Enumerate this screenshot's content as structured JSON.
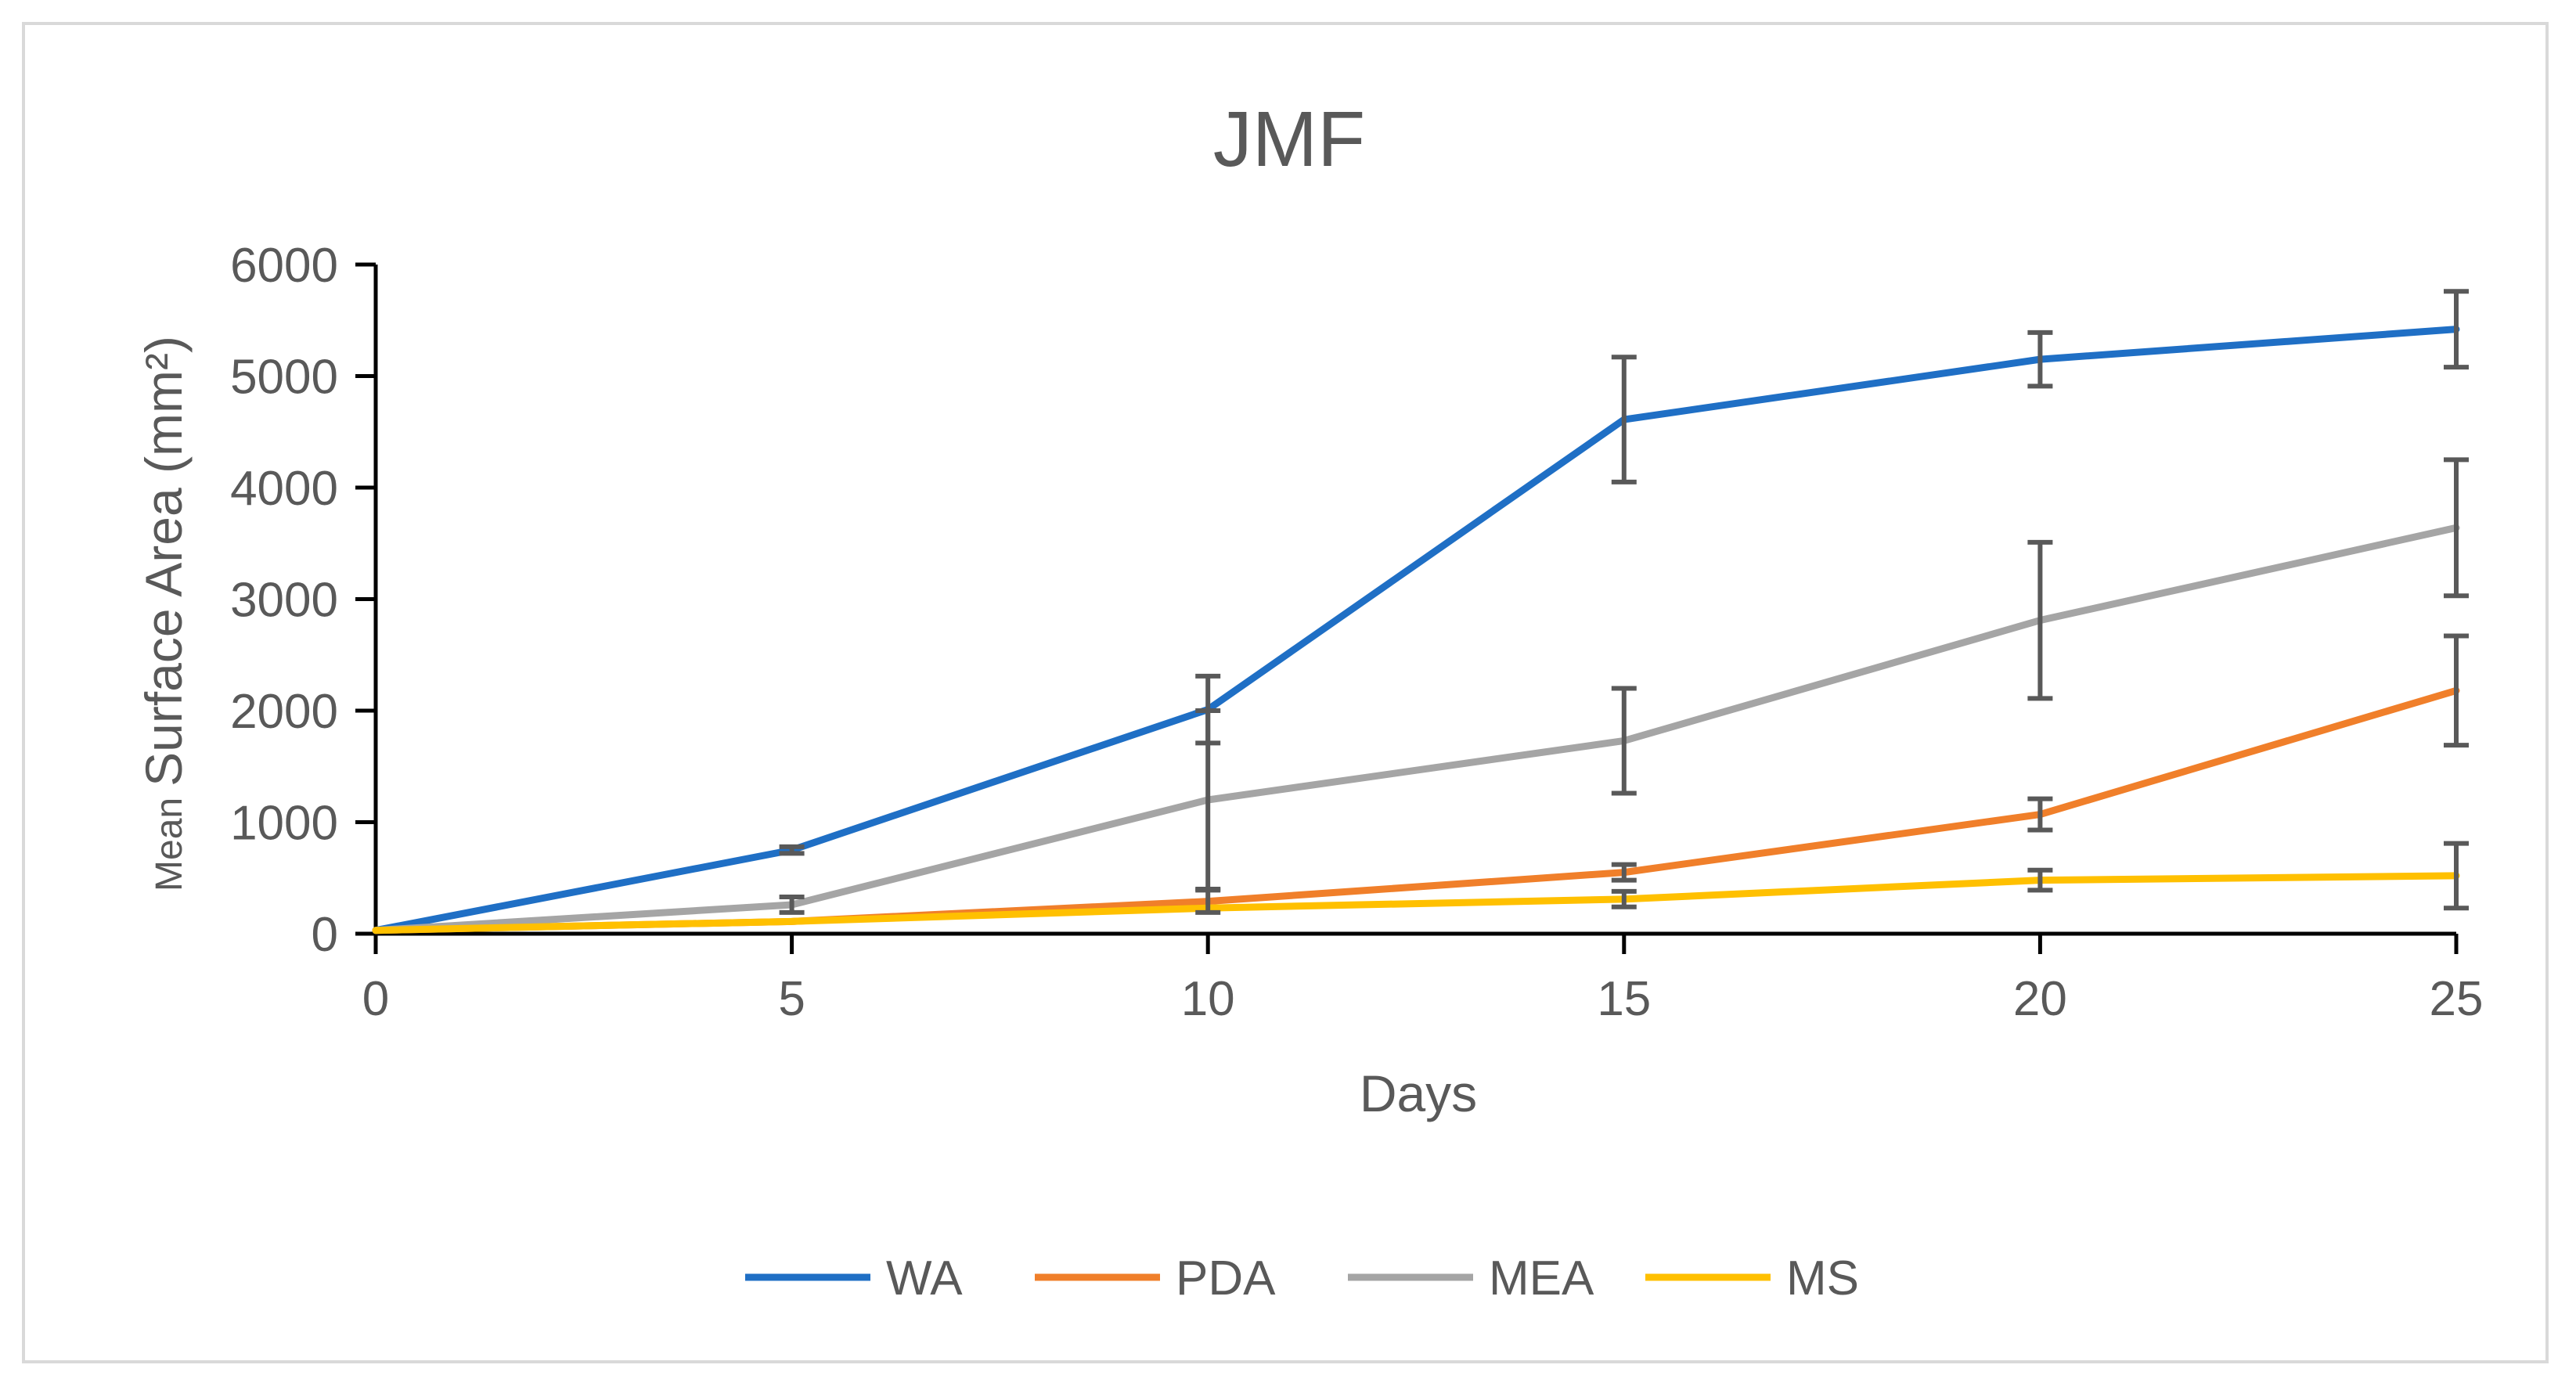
{
  "chart_data": {
    "type": "line",
    "title": "JMF",
    "xlabel": "Days",
    "ylabel_small": "Mean",
    "ylabel_large": "Surface Area (mm²)",
    "x": [
      0,
      5,
      10,
      15,
      20,
      25
    ],
    "xlim": [
      0,
      25
    ],
    "ylim": [
      0,
      6000
    ],
    "xticks": [
      0,
      5,
      10,
      15,
      20,
      25
    ],
    "yticks": [
      0,
      1000,
      2000,
      3000,
      4000,
      5000,
      6000
    ],
    "grid": false,
    "legend_position": "bottom",
    "series": [
      {
        "name": "WA",
        "color": "#1f6fc5",
        "values": [
          30,
          750,
          2010,
          4610,
          5150,
          5420
        ],
        "error": [
          0,
          30,
          300,
          560,
          240,
          340
        ]
      },
      {
        "name": "PDA",
        "color": "#f07f2a",
        "values": [
          30,
          110,
          290,
          550,
          1070,
          2180
        ],
        "error": [
          0,
          0,
          100,
          70,
          140,
          490
        ]
      },
      {
        "name": "MEA",
        "color": "#a5a5a5",
        "values": [
          30,
          260,
          1200,
          1730,
          2810,
          3640
        ],
        "error": [
          0,
          70,
          800,
          470,
          700,
          610
        ]
      },
      {
        "name": "MS",
        "color": "#ffc000",
        "values": [
          30,
          110,
          230,
          310,
          480,
          520
        ],
        "error": [
          0,
          0,
          0,
          70,
          90,
          290
        ]
      }
    ]
  }
}
